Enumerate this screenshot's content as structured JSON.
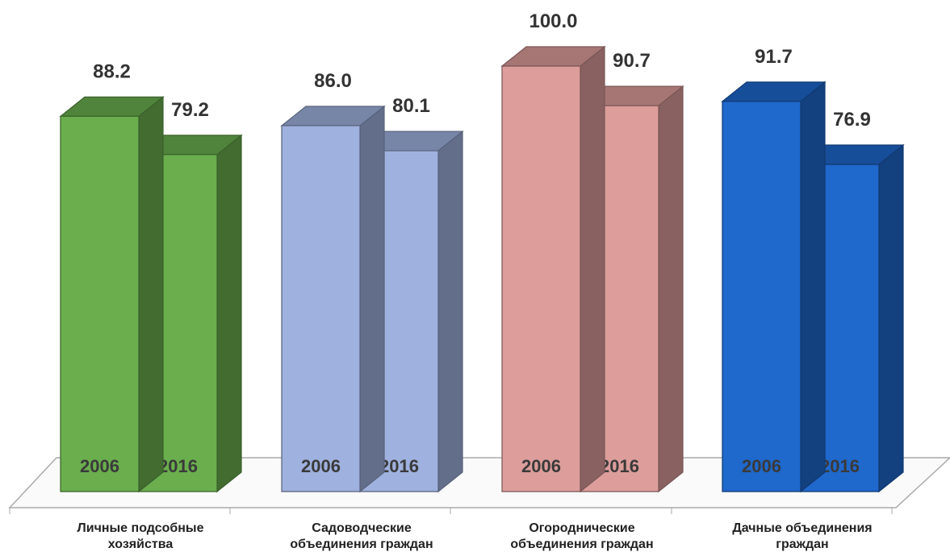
{
  "chart_data": {
    "type": "bar3d",
    "categories": [
      [
        "Личные подсобные",
        "хозяйства"
      ],
      [
        "Садоводческие",
        "объединения  граждан"
      ],
      [
        "Огороднические",
        "объединения граждан"
      ],
      [
        "Дачные объединения",
        "граждан"
      ]
    ],
    "category_colors": [
      "#6aae4e",
      "#9fb1de",
      "#dc9d9b",
      "#1f68cc"
    ],
    "series": [
      {
        "name": "2006",
        "values": [
          88.2,
          86.0,
          100.0,
          91.7
        ],
        "value_labels": [
          "88.2",
          "86.0",
          "100.0",
          "91.7"
        ]
      },
      {
        "name": "2016",
        "values": [
          79.2,
          80.1,
          90.7,
          76.9
        ],
        "value_labels": [
          "79.2",
          "80.1",
          "90.7",
          "76.9"
        ]
      }
    ]
  }
}
